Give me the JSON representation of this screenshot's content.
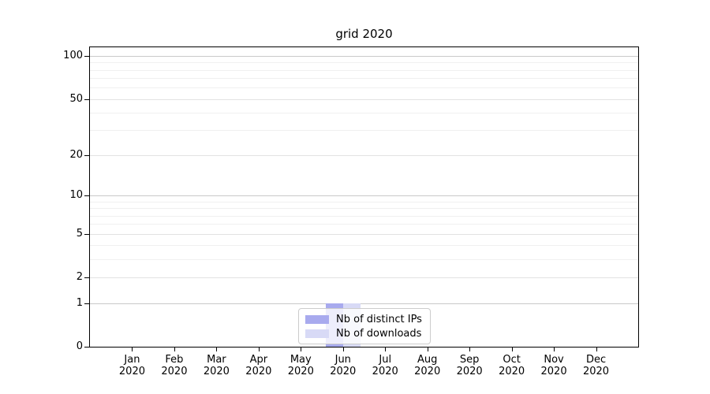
{
  "title": "grid 2020",
  "chart_data": {
    "type": "bar",
    "title": "grid 2020",
    "categories": [
      "Jan",
      "Feb",
      "Mar",
      "Apr",
      "May",
      "Jun",
      "Jul",
      "Aug",
      "Sep",
      "Oct",
      "Nov",
      "Dec"
    ],
    "category_year": "2020",
    "series": [
      {
        "name": "Nb of distinct IPs",
        "color": "#a8aaee",
        "values": [
          0,
          0,
          0,
          0,
          0,
          1,
          0,
          0,
          0,
          0,
          0,
          0
        ]
      },
      {
        "name": "Nb of downloads",
        "color": "#d8daf6",
        "values": [
          0,
          0,
          0,
          0,
          0,
          1,
          0,
          0,
          0,
          0,
          0,
          0
        ]
      }
    ],
    "xlabel": "",
    "ylabel": "",
    "y_axis": {
      "scale": "log1p",
      "ticks": [
        0,
        1,
        2,
        5,
        10,
        20,
        50,
        100
      ],
      "max": 115,
      "grid_major": [
        1,
        10,
        100
      ],
      "grid_mid": [
        2,
        5,
        20,
        50
      ],
      "grid_minor": [
        3,
        4,
        6,
        7,
        8,
        9,
        30,
        40,
        60,
        70,
        80,
        90
      ]
    },
    "legend_position": "lower center",
    "grid": "on"
  },
  "colors": {
    "grid_major": "#c9c9c9",
    "grid_mid": "#e2e2e2",
    "grid_minor": "#f0f0f0",
    "spine": "#000000",
    "legend_border": "#cccccc"
  }
}
